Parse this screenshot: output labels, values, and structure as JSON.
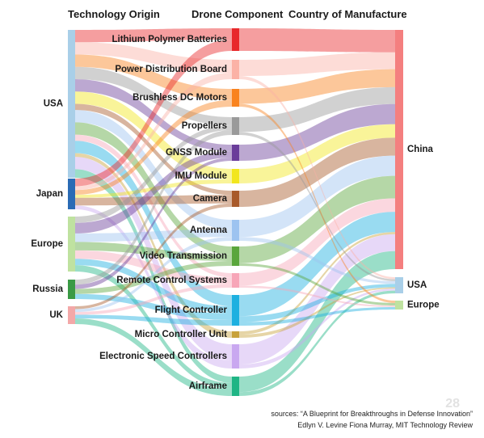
{
  "headers": {
    "origin": "Technology Origin",
    "component": "Drone Component",
    "country": "Country of Manufacture"
  },
  "origins": [
    {
      "name": "USA",
      "color": "#a9cfe8"
    },
    {
      "name": "Japan",
      "color": "#2a6bb5"
    },
    {
      "name": "Europe",
      "color": "#bfe2a0"
    },
    {
      "name": "Russia",
      "color": "#3a9a45"
    },
    {
      "name": "UK",
      "color": "#f3a8a8"
    }
  ],
  "components": [
    {
      "name": "Lithium Polymer Batteries",
      "color": "#e8282b"
    },
    {
      "name": "Power Distribution Board",
      "color": "#fbb2a6"
    },
    {
      "name": "Brushless DC Motors",
      "color": "#f9831e"
    },
    {
      "name": "Propellers",
      "color": "#9a9a9a"
    },
    {
      "name": "GNSS Module",
      "color": "#6a3d9a"
    },
    {
      "name": "IMU Module",
      "color": "#f2e61d"
    },
    {
      "name": "Camera",
      "color": "#a85a2a"
    },
    {
      "name": "Antenna",
      "color": "#9dc3f0"
    },
    {
      "name": "Video Transmission",
      "color": "#5aa63c"
    },
    {
      "name": "Remote Control Systems",
      "color": "#f7a6b8"
    },
    {
      "name": "Flight Controller",
      "color": "#1db0e0"
    },
    {
      "name": "Micro Controller Unit",
      "color": "#c8a23a"
    },
    {
      "name": "Electronic Speed Controllers",
      "color": "#c9a8f0"
    },
    {
      "name": "Airframe",
      "color": "#1fb585"
    }
  ],
  "countries": [
    {
      "name": "China",
      "color": "#f47f7f"
    },
    {
      "name": "USA",
      "color": "#a9cfe8"
    },
    {
      "name": "Europe",
      "color": "#bfe2a0"
    }
  ],
  "links_origin_component": [
    [
      "USA",
      "Lithium Polymer Batteries",
      1
    ],
    [
      "USA",
      "Power Distribution Board",
      1
    ],
    [
      "USA",
      "Brushless DC Motors",
      1
    ],
    [
      "USA",
      "Propellers",
      1
    ],
    [
      "USA",
      "GNSS Module",
      1
    ],
    [
      "USA",
      "IMU Module",
      1
    ],
    [
      "USA",
      "Camera",
      0.5
    ],
    [
      "USA",
      "Antenna",
      1
    ],
    [
      "USA",
      "Video Transmission",
      1
    ],
    [
      "USA",
      "Remote Control Systems",
      0.5
    ],
    [
      "USA",
      "Flight Controller",
      1
    ],
    [
      "USA",
      "Micro Controller Unit",
      0.3
    ],
    [
      "USA",
      "Electronic Speed Controllers",
      1
    ],
    [
      "USA",
      "Airframe",
      0.7
    ],
    [
      "Japan",
      "Lithium Polymer Batteries",
      1
    ],
    [
      "Japan",
      "Brushless DC Motors",
      0.6
    ],
    [
      "Japan",
      "Camera",
      1
    ],
    [
      "Japan",
      "IMU Module",
      0.4
    ],
    [
      "Japan",
      "Power Distribution Board",
      0.5
    ],
    [
      "Japan",
      "Electronic Speed Controllers",
      0.5
    ],
    [
      "Europe",
      "GNSS Module",
      1
    ],
    [
      "Europe",
      "Propellers",
      0.6
    ],
    [
      "Europe",
      "Video Transmission",
      0.8
    ],
    [
      "Europe",
      "Remote Control Systems",
      0.8
    ],
    [
      "Europe",
      "Antenna",
      0.8
    ],
    [
      "Europe",
      "Flight Controller",
      0.6
    ],
    [
      "Europe",
      "Airframe",
      0.6
    ],
    [
      "Russia",
      "Propellers",
      0.6
    ],
    [
      "Russia",
      "Video Transmission",
      0.6
    ],
    [
      "Russia",
      "Flight Controller",
      0.6
    ],
    [
      "Russia",
      "GNSS Module",
      0.5
    ],
    [
      "UK",
      "Camera",
      0.4
    ],
    [
      "UK",
      "Antenna",
      0.4
    ],
    [
      "UK",
      "Flight Controller",
      0.5
    ],
    [
      "UK",
      "Airframe",
      0.8
    ],
    [
      "UK",
      "Remote Control Systems",
      0.4
    ]
  ],
  "links_component_country": [
    [
      "Lithium Polymer Batteries",
      "China",
      2
    ],
    [
      "Power Distribution Board",
      "China",
      1.5
    ],
    [
      "Brushless DC Motors",
      "China",
      1.6
    ],
    [
      "Propellers",
      "China",
      1.5
    ],
    [
      "GNSS Module",
      "China",
      1.8
    ],
    [
      "IMU Module",
      "China",
      1.2
    ],
    [
      "Camera",
      "China",
      1.6
    ],
    [
      "Antenna",
      "China",
      1.8
    ],
    [
      "Video Transmission",
      "China",
      2.0
    ],
    [
      "Remote Control Systems",
      "China",
      1.2
    ],
    [
      "Flight Controller",
      "China",
      1.8
    ],
    [
      "Micro Controller Unit",
      "China",
      0.2
    ],
    [
      "Electronic Speed Controllers",
      "China",
      1.5
    ],
    [
      "Airframe",
      "China",
      1.6
    ],
    [
      "Power Distribution Board",
      "USA",
      0.3
    ],
    [
      "Propellers",
      "USA",
      0.3
    ],
    [
      "Antenna",
      "USA",
      0.4
    ],
    [
      "Flight Controller",
      "USA",
      0.5
    ],
    [
      "Micro Controller Unit",
      "USA",
      0.2
    ],
    [
      "Electronic Speed Controllers",
      "USA",
      0.3
    ],
    [
      "Airframe",
      "USA",
      0.4
    ],
    [
      "Brushless DC Motors",
      "Europe",
      0.3
    ],
    [
      "Video Transmission",
      "Europe",
      0.3
    ],
    [
      "Remote Control Systems",
      "Europe",
      0.2
    ],
    [
      "Flight Controller",
      "Europe",
      0.3
    ]
  ],
  "sources": {
    "line1": "sources:  “A Blueprint for Breakthroughs in Defense Innovation”",
    "line2": "Edlyn V. Levine Fiona Murray, MIT Technology Review"
  },
  "page_number": "28"
}
